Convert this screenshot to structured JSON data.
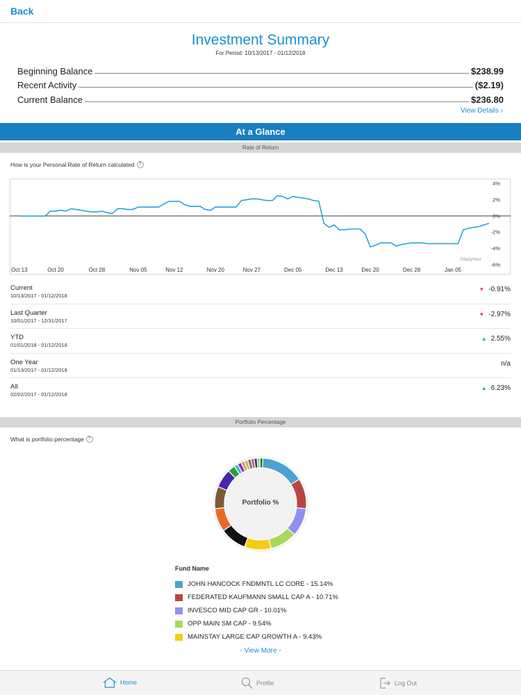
{
  "nav": {
    "back_label": "Back"
  },
  "summary": {
    "title": "Investment Summary",
    "period": "For Period: 10/13/2017 - 01/12/2018",
    "rows": [
      {
        "label": "Beginning Balance",
        "amount": "$238.99"
      },
      {
        "label": "Recent Activity",
        "amount": "($2.19)"
      },
      {
        "label": "Current Balance",
        "amount": "$236.80"
      }
    ],
    "view_details": "View Details"
  },
  "glance": {
    "header": "At a Glance",
    "ror_section": "Rate of Return",
    "ror_question": "How is your Personal Rate of Return calculated",
    "portfolio_section": "Portfolio Percentage",
    "portfolio_question": "What is portfolio percentage"
  },
  "chart_data": {
    "type": "line",
    "x": [
      "Oct 13",
      "Oct 14",
      "Oct 15",
      "Oct 16",
      "Oct 17",
      "Oct 18",
      "Oct 19",
      "Oct 20",
      "Oct 21",
      "Oct 22",
      "Oct 23",
      "Oct 24",
      "Oct 25",
      "Oct 26",
      "Oct 27",
      "Oct 28",
      "Oct 29",
      "Oct 30",
      "Oct 31",
      "Nov 01",
      "Nov 02",
      "Nov 03",
      "Nov 04",
      "Nov 05",
      "Nov 06",
      "Nov 07",
      "Nov 08",
      "Nov 09",
      "Nov 10",
      "Nov 11",
      "Nov 12",
      "Nov 13",
      "Nov 14",
      "Nov 15",
      "Nov 16",
      "Nov 17",
      "Nov 18",
      "Nov 19",
      "Nov 20",
      "Nov 21",
      "Nov 22",
      "Nov 23",
      "Nov 24",
      "Nov 25",
      "Nov 26",
      "Nov 27",
      "Nov 28",
      "Nov 29",
      "Nov 30",
      "Dec 01",
      "Dec 02",
      "Dec 03",
      "Dec 04",
      "Dec 05",
      "Dec 06",
      "Dec 07",
      "Dec 08",
      "Dec 09",
      "Dec 10",
      "Dec 11",
      "Dec 12",
      "Dec 13",
      "Dec 14",
      "Dec 15",
      "Dec 16",
      "Dec 17",
      "Dec 18",
      "Dec 19",
      "Dec 20",
      "Dec 21",
      "Dec 22",
      "Dec 23",
      "Dec 24",
      "Dec 25",
      "Dec 26",
      "Dec 27",
      "Dec 28",
      "Dec 29",
      "Dec 30",
      "Dec 31",
      "Jan 01",
      "Jan 02",
      "Jan 03",
      "Jan 04",
      "Jan 05",
      "Jan 06",
      "Jan 07",
      "Jan 08",
      "Jan 09",
      "Jan 10",
      "Jan 11",
      "Jan 12"
    ],
    "values": [
      0.0,
      0.0,
      0.0,
      0.0,
      0.0,
      0.0,
      0.6,
      0.6,
      0.7,
      0.6,
      0.9,
      0.8,
      0.7,
      0.6,
      0.5,
      0.5,
      0.6,
      0.4,
      0.3,
      0.9,
      0.9,
      0.8,
      0.8,
      1.1,
      1.1,
      1.1,
      1.1,
      1.1,
      1.5,
      1.8,
      1.8,
      1.8,
      1.4,
      1.2,
      1.2,
      1.2,
      0.8,
      0.7,
      1.1,
      1.1,
      1.1,
      1.1,
      1.1,
      1.9,
      2.0,
      2.1,
      2.1,
      2.0,
      1.9,
      1.9,
      2.5,
      2.4,
      2.1,
      2.4,
      2.3,
      2.2,
      2.1,
      1.9,
      1.8,
      -0.9,
      -1.4,
      -1.1,
      -1.7,
      -1.7,
      -1.6,
      -1.6,
      -1.6,
      -2.2,
      -3.8,
      -3.6,
      -3.3,
      -3.3,
      -3.3,
      -3.7,
      -3.5,
      -3.4,
      -3.3,
      -3.3,
      -3.3,
      -3.4,
      -3.4,
      -3.4,
      -3.4,
      -3.4,
      -3.4,
      -3.4,
      -1.7,
      -1.5,
      -1.4,
      -1.3,
      -1.1,
      -0.9
    ],
    "tick_labels": [
      "Oct 13",
      "Oct 20",
      "Oct 28",
      "Nov 05",
      "Nov 12",
      "Nov 20",
      "Nov 27",
      "Dec 05",
      "Dec 13",
      "Dec 20",
      "Dec 28",
      "Jan 05"
    ],
    "y_ticks": [
      "4%",
      "2%",
      "0%",
      "-2%",
      "-4%",
      "-6%"
    ],
    "ylim": [
      -6,
      4
    ],
    "watermark": "©dailyVest",
    "line_color": "#2aa3dd"
  },
  "ror": [
    {
      "name": "Current",
      "dates": "10/13/2017 - 01/12/2018",
      "value": "-0.91%",
      "trend": "down"
    },
    {
      "name": "Last Quarter",
      "dates": "10/01/2017 - 12/31/2017",
      "value": "-2.97%",
      "trend": "down"
    },
    {
      "name": "YTD",
      "dates": "01/01/2018 - 01/12/2018",
      "value": "2.55%",
      "trend": "up"
    },
    {
      "name": "One Year",
      "dates": "01/13/2017 - 01/12/2018",
      "value": "n/a",
      "trend": "none"
    },
    {
      "name": "All",
      "dates": "02/02/2017 - 01/12/2018",
      "value": "6.23%",
      "trend": "up"
    }
  ],
  "portfolio": {
    "donut_label": "Portfolio %",
    "legend_title": "Fund Name",
    "funds": [
      {
        "label": "JOHN HANCOCK FNDMNTL LC CORE - 15.14%",
        "value": 15.14,
        "color": "#4aa3d2"
      },
      {
        "label": "FEDERATED KAUFMANN SMALL CAP A - 10.71%",
        "value": 10.71,
        "color": "#b9453f"
      },
      {
        "label": "INVESCO MID CAP GR - 10.01%",
        "value": 10.01,
        "color": "#8f8ff0"
      },
      {
        "label": "OPP MAIN SM CAP - 9.54%",
        "value": 9.54,
        "color": "#a7d95a"
      },
      {
        "label": "MAINSTAY LARGE CAP GROWTH A - 9.43%",
        "value": 9.43,
        "color": "#f5cc12"
      }
    ],
    "other_segments": [
      {
        "value": 9.3,
        "color": "#111111"
      },
      {
        "value": 8.3,
        "color": "#ea6a25"
      },
      {
        "value": 7.8,
        "color": "#7a5a3b"
      },
      {
        "value": 6.6,
        "color": "#4a25a8"
      },
      {
        "value": 2.5,
        "color": "#2a9e3a"
      },
      {
        "value": 1.4,
        "color": "#2ec8c8"
      },
      {
        "value": 1.4,
        "color": "#9b2ad0"
      },
      {
        "value": 1.2,
        "color": "#b9a97a"
      },
      {
        "value": 1.2,
        "color": "#f0b020"
      },
      {
        "value": 1.2,
        "color": "#607a9a"
      },
      {
        "value": 1.1,
        "color": "#d05a5a"
      },
      {
        "value": 1.1,
        "color": "#3a3a8a"
      },
      {
        "value": 1.0,
        "color": "#9ad04a"
      },
      {
        "value": 1.0,
        "color": "#1e6e3a"
      }
    ],
    "view_more": "View More"
  },
  "tabs": [
    {
      "label": "Home",
      "icon": "home-icon",
      "active": true
    },
    {
      "label": "Profile",
      "icon": "profile-icon",
      "active": false
    },
    {
      "label": "Log Out",
      "icon": "logout-icon",
      "active": false
    }
  ]
}
